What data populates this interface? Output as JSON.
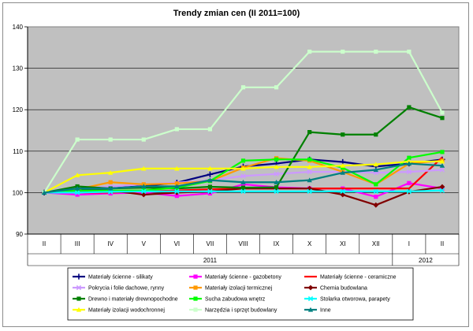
{
  "chart_data": {
    "type": "line",
    "title": "Trendy zmian cen (II 2011=100)",
    "categories": [
      "II",
      "III",
      "IV",
      "V",
      "VI",
      "VII",
      "VIII",
      "IX",
      "X",
      "XI",
      "XII",
      "I",
      "II"
    ],
    "year_groups": [
      {
        "label": "2011",
        "start": 0,
        "end": 10
      },
      {
        "label": "2012",
        "start": 11,
        "end": 12
      }
    ],
    "ylim": [
      90,
      140
    ],
    "yticks": [
      90,
      100,
      110,
      120,
      130,
      140
    ],
    "grid": true,
    "legend_position": "bottom",
    "series": [
      {
        "name": "Materiały ścienne - silikaty",
        "color": "#000080",
        "marker": "plus",
        "values": [
          100,
          100.6,
          101,
          101.6,
          102.4,
          104.4,
          106.3,
          107,
          108,
          107.4,
          106.3,
          107,
          108
        ]
      },
      {
        "name": "Materiały ścienne - gazobetony",
        "color": "#ff00ff",
        "marker": "square",
        "values": [
          100,
          99.5,
          99.8,
          100,
          99.2,
          99.8,
          102,
          101.3,
          101,
          101,
          99,
          102.3,
          101
        ]
      },
      {
        "name": "Materiały ścienne - ceramiczne",
        "color": "#ff0000",
        "marker": "none",
        "values": [
          100,
          100,
          100,
          100.3,
          100.5,
          100.8,
          101,
          101,
          101,
          101,
          101,
          101,
          108.5
        ]
      },
      {
        "name": "Pokrycia i folie dachowe, rynny",
        "color": "#cc99ff",
        "marker": "x",
        "values": [
          100,
          101,
          101.5,
          102,
          102.4,
          103,
          104,
          104.5,
          105,
          105,
          104.8,
          105,
          105.5
        ]
      },
      {
        "name": "Materiały izolacji termicznej",
        "color": "#ff9900",
        "marker": "square",
        "values": [
          100,
          100.8,
          102.5,
          102,
          102.2,
          102.8,
          106,
          108.3,
          107.7,
          105,
          102,
          107,
          107.7
        ]
      },
      {
        "name": "Chemia budowlana",
        "color": "#800000",
        "marker": "diamond",
        "values": [
          100,
          100.5,
          100.5,
          99.5,
          100,
          100.3,
          101,
          101,
          101,
          99.5,
          97,
          100.2,
          101.4
        ]
      },
      {
        "name": "Drewno i materiały drewnopochodne",
        "color": "#008000",
        "marker": "square",
        "values": [
          100,
          101.5,
          101,
          101.2,
          101,
          101.4,
          101.2,
          101.3,
          114.6,
          114,
          114,
          120.6,
          118
        ]
      },
      {
        "name": "Sucha zabudowa wnętrz",
        "color": "#00ff00",
        "marker": "square",
        "values": [
          100,
          100.5,
          100.5,
          100.5,
          101.2,
          102.8,
          107.7,
          108,
          108,
          106,
          102,
          108.4,
          109.8
        ]
      },
      {
        "name": "Stolarka otworowa, parapety",
        "color": "#00ffff",
        "marker": "x",
        "values": [
          100,
          100,
          100.2,
          100.3,
          100.3,
          100.3,
          100.3,
          100.3,
          100.3,
          100.3,
          100.3,
          100.3,
          100.5
        ]
      },
      {
        "name": "Materiały izolacji wodochronnej",
        "color": "#ffff00",
        "marker": "triangle",
        "values": [
          100,
          104.2,
          104.8,
          105.8,
          105.8,
          105.8,
          105.8,
          106.2,
          106.2,
          106.5,
          106.8,
          107.5,
          107.5
        ]
      },
      {
        "name": "Narzędzia i sprzęt budowlany",
        "color": "#ccffcc",
        "marker": "square",
        "values": [
          100,
          112.8,
          112.8,
          112.8,
          115.3,
          115.3,
          125.4,
          125.4,
          134,
          134,
          134,
          134,
          119.3
        ]
      },
      {
        "name": "Inne",
        "color": "#008080",
        "marker": "triangle",
        "values": [
          100,
          101,
          101,
          101.5,
          101.5,
          103,
          102.5,
          102.5,
          103,
          104.8,
          105.5,
          107,
          106.5
        ]
      }
    ]
  }
}
